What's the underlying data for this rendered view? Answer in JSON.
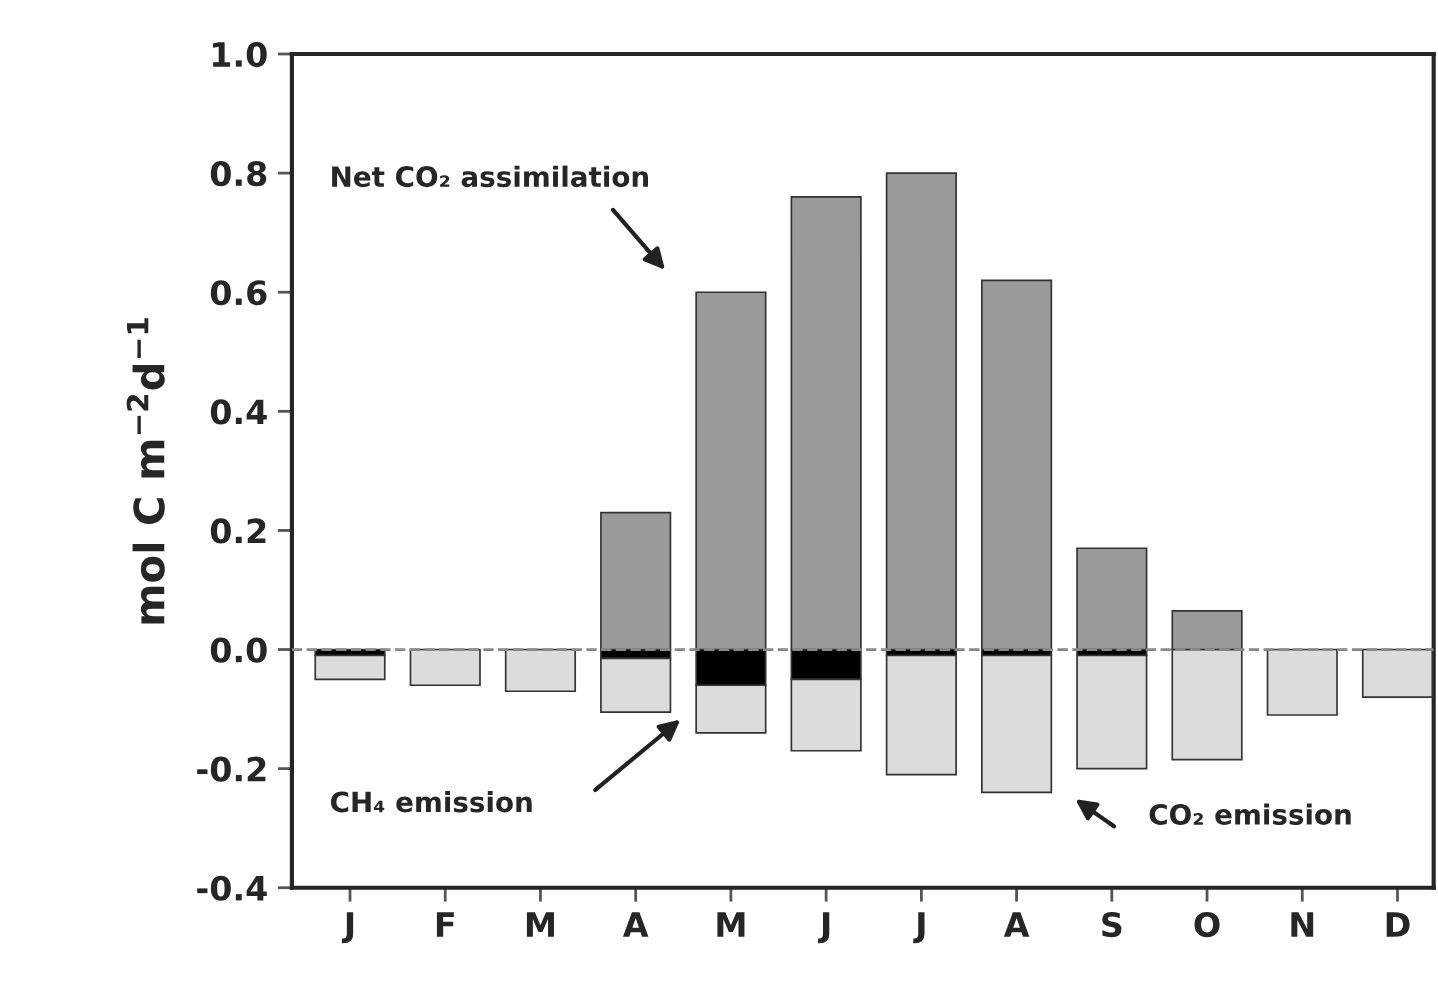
{
  "chart_data": {
    "type": "bar",
    "stacked": true,
    "ylabel": "mol C m$^{−2}$d$^{−1}$",
    "categories": [
      "J",
      "F",
      "M",
      "A",
      "M",
      "J",
      "J",
      "A",
      "S",
      "O",
      "N",
      "D"
    ],
    "series": [
      {
        "color": "#000000",
        "values": [
          -0.01,
          null,
          null,
          -0.015,
          -0.06,
          -0.05,
          -0.01,
          -0.01,
          -0.01,
          null,
          null,
          null
        ]
      },
      {
        "color": "#dcdcdc",
        "values": [
          -0.04,
          -0.06,
          -0.07,
          -0.09,
          -0.08,
          -0.12,
          -0.2,
          -0.23,
          -0.19,
          -0.185,
          -0.11,
          -0.08
        ]
      },
      {
        "color": "#9a9a9a",
        "values": [
          null,
          null,
          null,
          0.23,
          0.6,
          0.76,
          0.8,
          0.62,
          0.17,
          0.065,
          null,
          null
        ]
      }
    ],
    "ylim": [
      -0.4,
      1.0
    ],
    "yticks": [
      -0.4,
      -0.2,
      {
        "value": 0,
        "label": "0.0"
      },
      0.2,
      0.4,
      0.6,
      0.8,
      {
        "value": 1,
        "label": "1.0"
      }
    ],
    "ref_lines": [
      {
        "axis": "y",
        "value": 0,
        "color": "#888888",
        "line_style": "dashed"
      }
    ],
    "annotations": [
      "Net CO₂ assimilation",
      "CH₄ emission",
      "CO₂ emission"
    ],
    "grid": false
  }
}
